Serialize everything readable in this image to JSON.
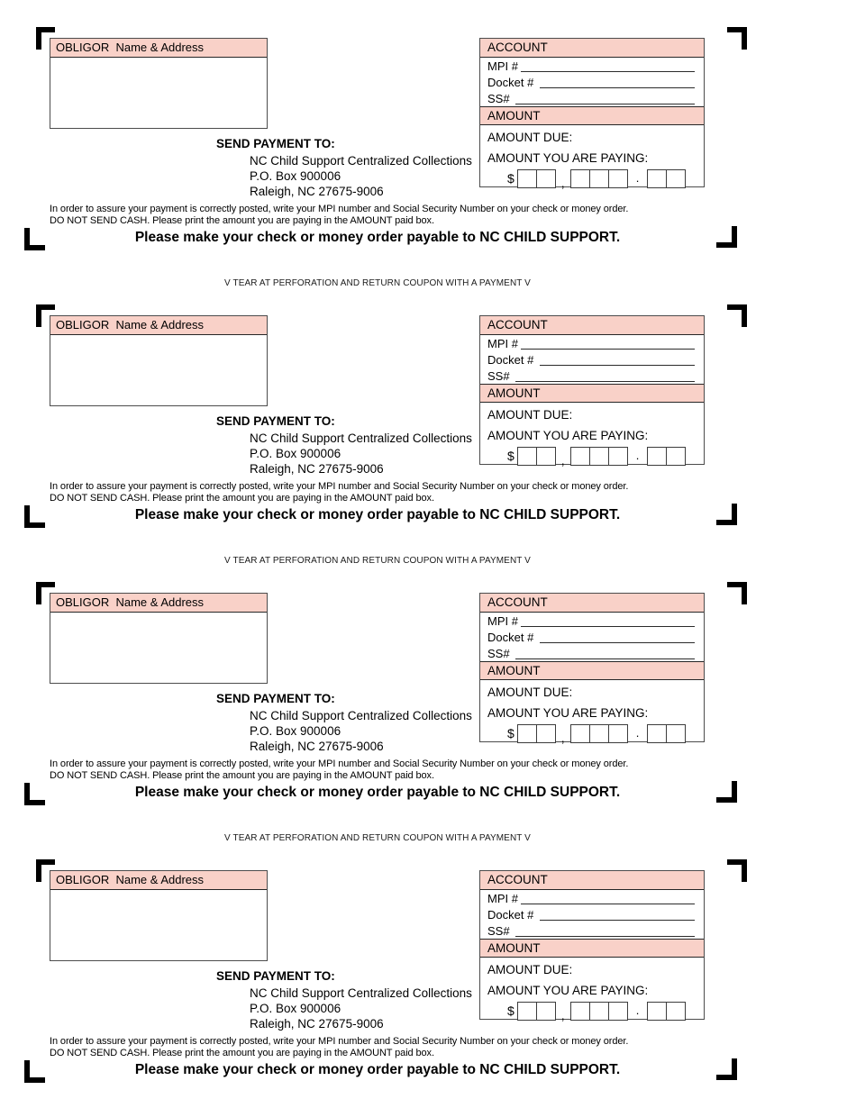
{
  "colors": {
    "header_pink": "#f9d1c8",
    "box_border": "#4c4c4c",
    "mark_black": "#000000"
  },
  "coupon_count": 4,
  "coupon": {
    "obligor_header": "OBLIGOR  Name & Address",
    "account": {
      "header": "ACCOUNT",
      "fields": [
        {
          "label": "MPI #"
        },
        {
          "label": "Docket # "
        },
        {
          "label": "SS# "
        }
      ],
      "amount_header": "AMOUNT",
      "amount_due_label": "AMOUNT DUE:",
      "amount_paying_label": "AMOUNT YOU ARE PAYING:",
      "currency_symbol": "$",
      "thousands_separator": ",",
      "decimal_separator": ".",
      "amount_cells": {
        "thousands": 2,
        "units": 3,
        "cents": 2
      }
    },
    "send_payment": {
      "heading": "SEND PAYMENT TO:",
      "address_lines": [
        "NC Child Support Centralized Collections",
        "P.O. Box 900006",
        "Raleigh, NC 27675-9006"
      ]
    },
    "fine_print": [
      "In order to assure your payment is correctly posted, write your MPI number and Social Security Number on your check or money order.",
      "DO NOT SEND CASH. Please print the amount you are paying in the AMOUNT paid box."
    ],
    "payable_line": "Please make your check or money order payable to NC CHILD SUPPORT."
  },
  "tear_line": "V TEAR AT PERFORATION AND RETURN COUPON WITH A PAYMENT V"
}
